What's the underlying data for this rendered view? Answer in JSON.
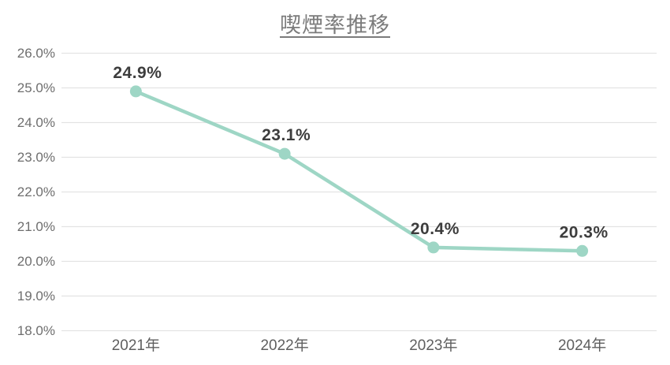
{
  "chart_data": {
    "type": "line",
    "title": "喫煙率推移",
    "categories": [
      "2021年",
      "2022年",
      "2023年",
      "2024年"
    ],
    "values": [
      24.9,
      23.1,
      20.4,
      20.3
    ],
    "point_labels": [
      "24.9%",
      "23.1%",
      "20.4%",
      "20.3%"
    ],
    "y_ticks": [
      "26.0%",
      "25.0%",
      "24.0%",
      "23.0%",
      "22.0%",
      "21.0%",
      "20.0%",
      "19.0%",
      "18.0%"
    ],
    "ylim": [
      18,
      26
    ],
    "y_step": 1,
    "grid": true,
    "legend": "none",
    "colors": {
      "line": "#9ed6c5",
      "marker": "#9ed6c5",
      "grid": "#e3e3e3",
      "point_label": "#3d3d3d",
      "y_axis_text": "#6e6e6e",
      "x_axis_text": "#5f5f5f",
      "title_text": "#7b7b7b"
    }
  }
}
